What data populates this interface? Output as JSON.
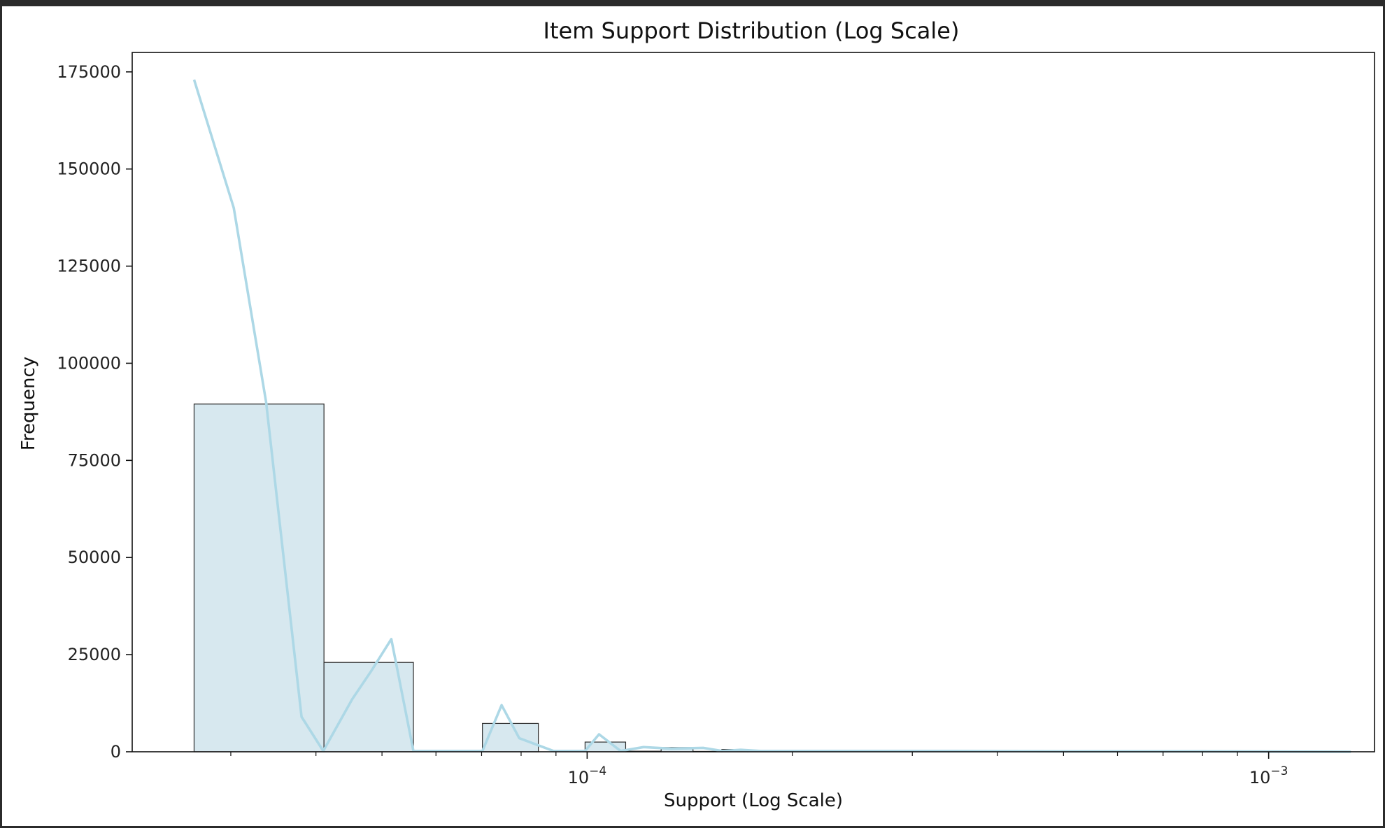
{
  "chart_data": {
    "type": "bar",
    "title": "Item Support Distribution (Log Scale)",
    "xlabel": "Support (Log Scale)",
    "ylabel": "Frequency",
    "x_scale": "log",
    "xlim": [
      2.15e-05,
      0.00143
    ],
    "ylim": [
      0,
      180000
    ],
    "y_ticks": [
      0,
      25000,
      50000,
      75000,
      100000,
      125000,
      150000,
      175000
    ],
    "y_tick_labels": [
      "0",
      "25000",
      "50000",
      "75000",
      "100000",
      "125000",
      "150000",
      "175000"
    ],
    "x_major_ticks": [
      0.0001,
      0.001
    ],
    "x_major_tick_labels": [
      {
        "base": "10",
        "exp": "−4"
      },
      {
        "base": "10",
        "exp": "−3"
      }
    ],
    "x_minor_ticks": [
      3e-05,
      4e-05,
      5e-05,
      6e-05,
      7e-05,
      8e-05,
      9e-05,
      0.0002,
      0.0003,
      0.0004,
      0.0005,
      0.0006,
      0.0007,
      0.0008,
      0.0009
    ],
    "bins": [
      {
        "x0": 2.65e-05,
        "x1": 4.11e-05,
        "value": 89500
      },
      {
        "x0": 4.11e-05,
        "x1": 5.56e-05,
        "value": 23000
      },
      {
        "x0": 5.56e-05,
        "x1": 7.02e-05,
        "value": 0
      },
      {
        "x0": 7.02e-05,
        "x1": 8.48e-05,
        "value": 7300
      },
      {
        "x0": 8.48e-05,
        "x1": 9.93e-05,
        "value": 0
      },
      {
        "x0": 9.93e-05,
        "x1": 0.0001139,
        "value": 2500
      },
      {
        "x0": 0.0001139,
        "x1": 0.0001284,
        "value": 150
      },
      {
        "x0": 0.0001284,
        "x1": 0.000143,
        "value": 1100
      },
      {
        "x0": 0.000143,
        "x1": 0.0001576,
        "value": 100
      },
      {
        "x0": 0.0001576,
        "x1": 0.0001721,
        "value": 600
      },
      {
        "x0": 0.0001721,
        "x1": 0.0002,
        "value": 250
      },
      {
        "x0": 0.0002,
        "x1": 0.00024,
        "value": 100
      },
      {
        "x0": 0.00024,
        "x1": 0.0003,
        "value": 60
      },
      {
        "x0": 0.0003,
        "x1": 0.0004,
        "value": 40
      },
      {
        "x0": 0.0004,
        "x1": 0.0006,
        "value": 20
      },
      {
        "x0": 0.0006,
        "x1": 0.0009,
        "value": 10
      },
      {
        "x0": 0.0009,
        "x1": 0.00132,
        "value": 5
      }
    ],
    "kde_line": {
      "x": [
        2.65e-05,
        3.03e-05,
        3.38e-05,
        3.81e-05,
        4.1e-05,
        4.52e-05,
        4.83e-05,
        5.16e-05,
        5.56e-05,
        6.47e-05,
        7.02e-05,
        7.49e-05,
        7.95e-05,
        8.93e-05,
        9.93e-05,
        0.0001041,
        0.000112,
        0.000121,
        0.000133,
        0.000148,
        0.000158,
        0.000168,
        0.00018,
        0.000215,
        0.00026,
        0.00035,
        0.0005,
        0.0008,
        0.00132
      ],
      "y": [
        173000,
        140000,
        90000,
        9000,
        200,
        13500,
        21000,
        29000,
        200,
        200,
        200,
        12000,
        3500,
        200,
        200,
        4500,
        200,
        1200,
        800,
        1000,
        200,
        500,
        200,
        200,
        200,
        200,
        100,
        100,
        0
      ]
    },
    "bar_fill": "#d7e8ef",
    "bar_edge": "#2b2b2b",
    "line_color": "#add8e6",
    "grid": false,
    "legend": "none"
  }
}
